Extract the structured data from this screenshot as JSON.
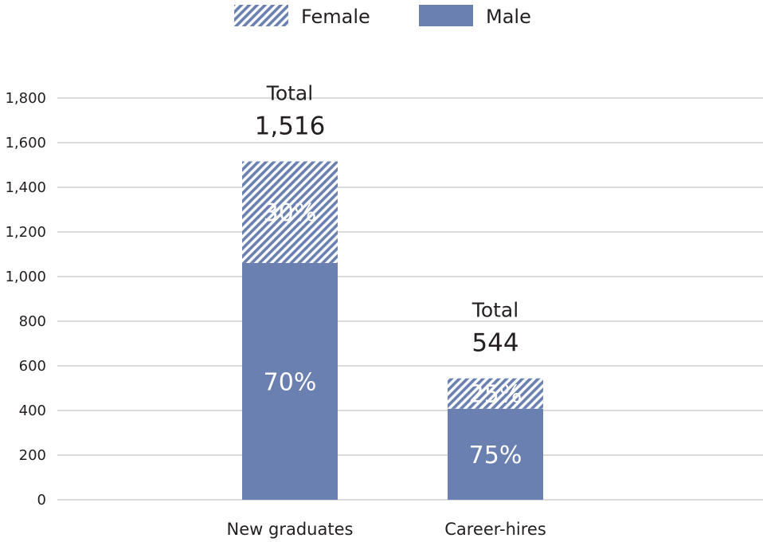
{
  "chart_data": {
    "type": "bar",
    "stacked": true,
    "categories": [
      "New graduates",
      "Career-hires"
    ],
    "series": [
      {
        "name": "Male",
        "values": [
          1061,
          408
        ],
        "labels": [
          "70%",
          "75%"
        ],
        "color": "#6a80b0",
        "pattern": "solid"
      },
      {
        "name": "Female",
        "values": [
          455,
          136
        ],
        "labels": [
          "30%",
          "25%"
        ],
        "color": "#6a80b0",
        "pattern": "hatched"
      }
    ],
    "totals": {
      "word": "Total",
      "values": [
        "1,516",
        "544"
      ]
    },
    "legend": {
      "position": "top-center",
      "order": [
        "Female",
        "Male"
      ]
    },
    "ylim": [
      0,
      1800
    ],
    "yticks": [
      0,
      200,
      400,
      600,
      800,
      1000,
      1200,
      1400,
      1600,
      1800
    ],
    "ytick_labels": [
      "0",
      "200",
      "400",
      "600",
      "800",
      "1,000",
      "1,200",
      "1,400",
      "1,600",
      "1,800"
    ],
    "grid": true
  }
}
